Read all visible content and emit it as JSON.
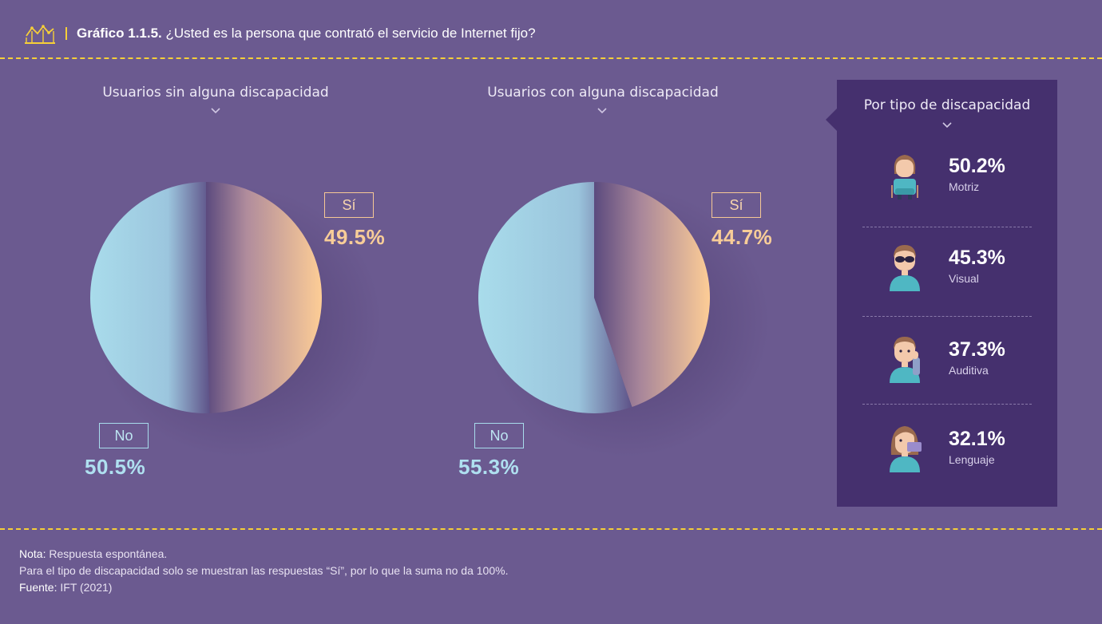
{
  "header": {
    "prefix": "Gráfico 1.1.5.",
    "title": "¿Usted es la persona que contrató el servicio de Internet fijo?"
  },
  "chart_data": [
    {
      "type": "pie",
      "title": "Usuarios sin alguna discapacidad",
      "categories": [
        "Sí",
        "No"
      ],
      "values": [
        49.5,
        50.5
      ],
      "labels": [
        "49.5%",
        "50.5%"
      ]
    },
    {
      "type": "pie",
      "title": "Usuarios con alguna discapacidad",
      "categories": [
        "Sí",
        "No"
      ],
      "values": [
        44.7,
        55.3
      ],
      "labels": [
        "44.7%",
        "55.3%"
      ]
    },
    {
      "type": "table",
      "title": "Por tipo de discapacidad",
      "categories": [
        "Motriz",
        "Visual",
        "Auditiva",
        "Lenguaje"
      ],
      "values": [
        50.2,
        45.3,
        37.3,
        32.1
      ],
      "labels": [
        "50.2%",
        "45.3%",
        "37.3%",
        "32.1%"
      ]
    }
  ],
  "colors": {
    "background": "#6b5a90",
    "panel": "#45306e",
    "si": "#fbcb95",
    "no": "#a8dcec",
    "accent": "#f6cf38"
  },
  "icons": [
    "chart-line-icon",
    "chevron-down-icon",
    "wheelchair-user-icon",
    "blind-user-icon",
    "deaf-user-icon",
    "speech-user-icon"
  ],
  "notes": {
    "nota_key": "Nota:",
    "nota_text": " Respuesta espontánea.",
    "line2": "Para el tipo de discapacidad solo se muestran las respuestas “Sí”, por lo que la suma no da 100%.",
    "fuente_key": "Fuente:",
    "fuente_text": " IFT (2021)"
  }
}
